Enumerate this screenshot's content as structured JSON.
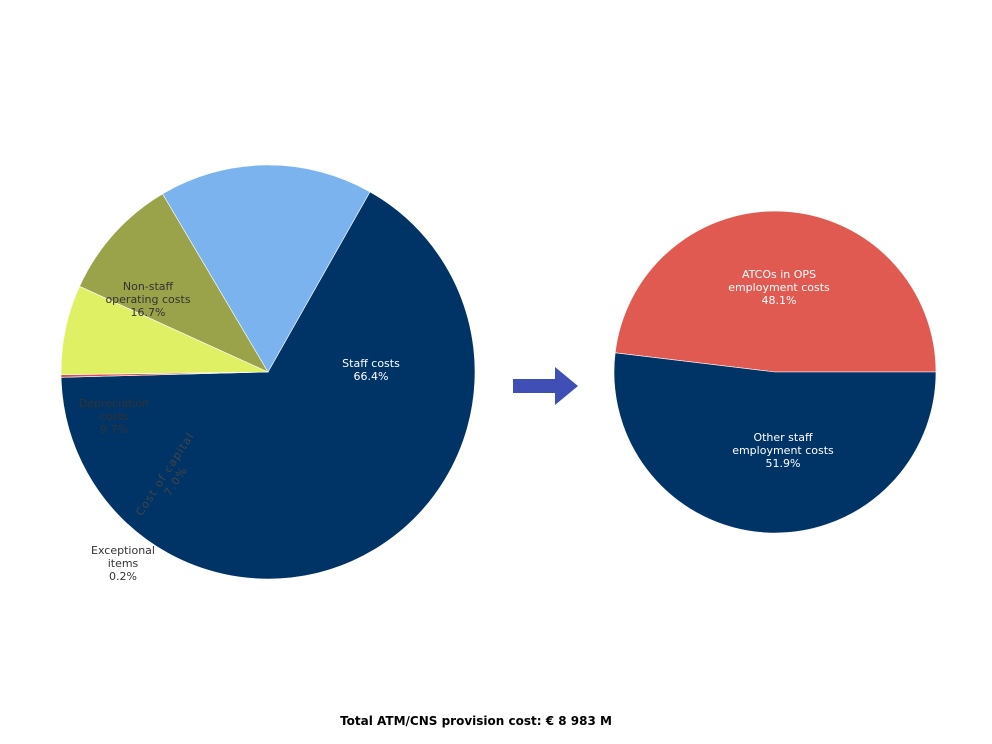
{
  "chart_data": [
    {
      "type": "pie",
      "slices": [
        {
          "label_lines": [
            "Staff costs",
            "66.4%"
          ],
          "value": 66.4,
          "color": "#003366",
          "label_color": "#ffffff"
        },
        {
          "label_lines": [
            "Exceptional",
            "items",
            "0.2%"
          ],
          "value": 0.2,
          "color": "#e0504a",
          "label_color": "#333333"
        },
        {
          "label_lines": [
            "Cost of capital",
            "7.0%"
          ],
          "value": 7.0,
          "color": "#e0f064",
          "label_color": "#444444"
        },
        {
          "label_lines": [
            "Depreciation",
            "costs",
            "9.7%"
          ],
          "value": 9.7,
          "color": "#9aa24a",
          "label_color": "#333333"
        },
        {
          "label_lines": [
            "Non-staff",
            "operating costs",
            "16.7%"
          ],
          "value": 16.7,
          "color": "#7bb3ee",
          "label_color": "#333333"
        }
      ]
    },
    {
      "type": "pie",
      "slices": [
        {
          "label_lines": [
            "ATCOs in OPS",
            "employment costs",
            "48.1%"
          ],
          "value": 48.1,
          "color": "#e05a52",
          "label_color": "#ffffff"
        },
        {
          "label_lines": [
            "Other staff",
            "employment costs",
            "51.9%"
          ],
          "value": 51.9,
          "color": "#003366",
          "label_color": "#ffffff"
        }
      ]
    }
  ],
  "arrow": {
    "color": "#3f4fb5"
  },
  "footer": {
    "caption": "Total ATM/CNS provision cost: € 8 983 M"
  }
}
